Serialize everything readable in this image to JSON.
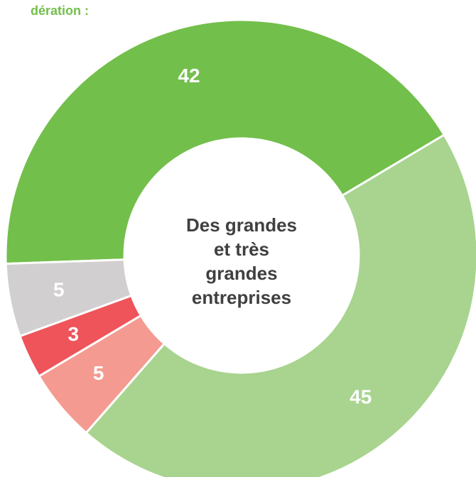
{
  "chart_data": {
    "type": "donut",
    "title": "dération :",
    "center_label": [
      "Des grandes",
      "et très",
      "grandes",
      "entreprises"
    ],
    "values": [
      42,
      45,
      5,
      3,
      5
    ],
    "colors": [
      "#72bf4b",
      "#a8d48f",
      "#f49a90",
      "#ee545a",
      "#d1cfcf"
    ]
  }
}
